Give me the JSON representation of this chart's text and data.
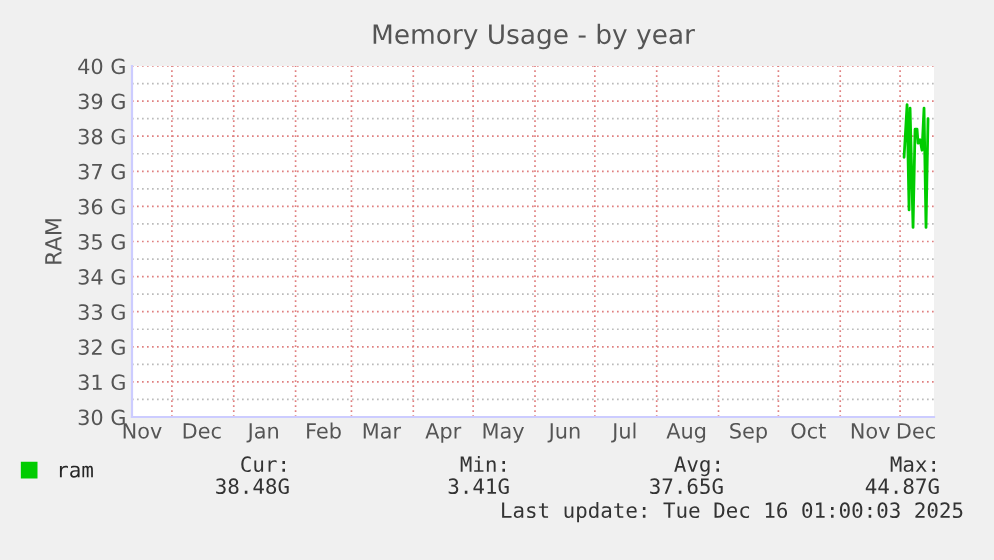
{
  "chart_data": {
    "type": "line",
    "title": "Memory Usage - by year",
    "ylabel": "RAM",
    "x": [
      "2025-12-03",
      "2025-12-04T12:00",
      "2025-12-05T12:00",
      "2025-12-06",
      "2025-12-07T12:00",
      "2025-12-08T12:00",
      "2025-12-09T12:00",
      "2025-12-10",
      "2025-12-11",
      "2025-12-12",
      "2025-12-13",
      "2025-12-14",
      "2025-12-15"
    ],
    "series": [
      {
        "name": "ram",
        "color": "#00cc00",
        "values": [
          37.4,
          38.9,
          35.9,
          38.8,
          35.4,
          38.2,
          38.2,
          37.8,
          37.9,
          37.6,
          38.8,
          35.4,
          38.5
        ]
      }
    ],
    "xlim": [
      "2024-11-11",
      "2025-12-18"
    ],
    "xticks": [
      {
        "value": "2024-11-16",
        "label": "Nov"
      },
      {
        "value": "2024-12-16",
        "label": "Dec"
      },
      {
        "value": "2025-01-16",
        "label": "Jan"
      },
      {
        "value": "2025-02-15",
        "label": "Feb"
      },
      {
        "value": "2025-03-16",
        "label": "Mar"
      },
      {
        "value": "2025-04-16",
        "label": "Apr"
      },
      {
        "value": "2025-05-16",
        "label": "May"
      },
      {
        "value": "2025-06-16",
        "label": "Jun"
      },
      {
        "value": "2025-07-16",
        "label": "Jul"
      },
      {
        "value": "2025-08-16",
        "label": "Aug"
      },
      {
        "value": "2025-09-16",
        "label": "Sep"
      },
      {
        "value": "2025-10-16",
        "label": "Oct"
      },
      {
        "value": "2025-11-16",
        "label": "Nov"
      },
      {
        "value": "2025-12-09",
        "label": "Dec"
      }
    ],
    "ylim": [
      30,
      40
    ],
    "yticks": [
      {
        "value": 30,
        "label": "30 G"
      },
      {
        "value": 31,
        "label": "31 G"
      },
      {
        "value": 32,
        "label": "32 G"
      },
      {
        "value": 33,
        "label": "33 G"
      },
      {
        "value": 34,
        "label": "34 G"
      },
      {
        "value": 35,
        "label": "35 G"
      },
      {
        "value": 36,
        "label": "36 G"
      },
      {
        "value": 37,
        "label": "37 G"
      },
      {
        "value": 38,
        "label": "38 G"
      },
      {
        "value": 39,
        "label": "39 G"
      },
      {
        "value": 40,
        "label": "40 G"
      }
    ],
    "grid": true,
    "legend": "bottom",
    "marker": "none",
    "line_style": "solid",
    "annotations": [
      "Cur:",
      "Min:",
      "Avg:",
      "Max:",
      "38.48G",
      "3.41G",
      "37.65G",
      "44.87G",
      "Last update: Tue Dec 16 01:00:03 2025"
    ]
  }
}
